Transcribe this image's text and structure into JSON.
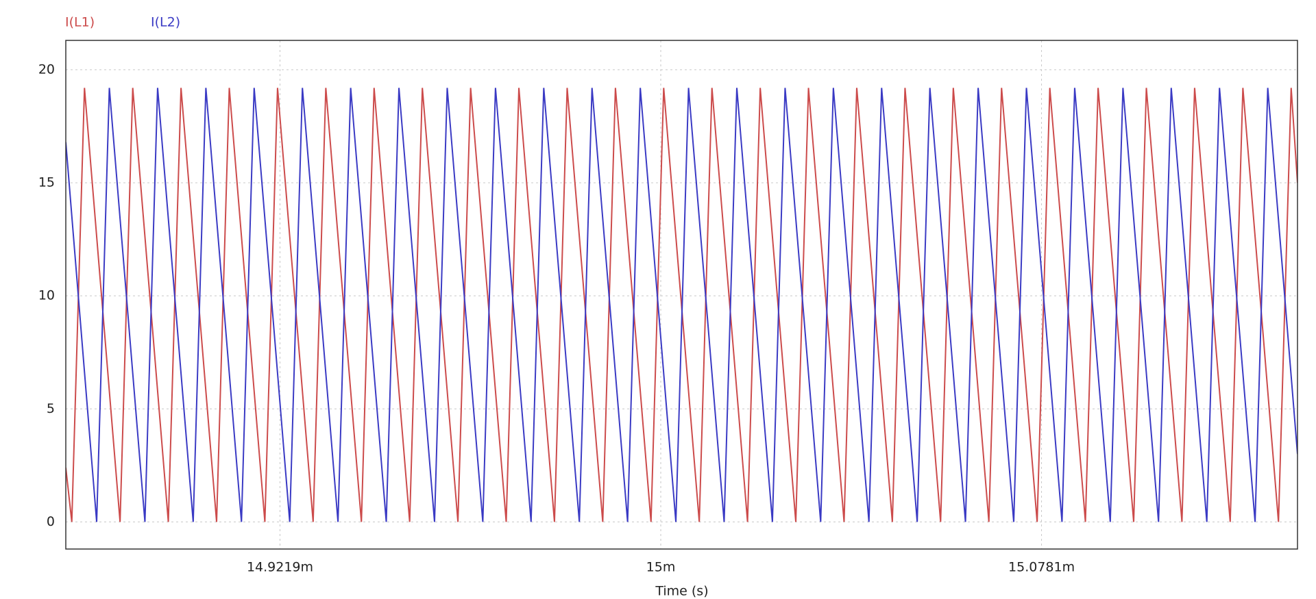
{
  "chart_data": {
    "type": "line",
    "xlabel": "Time (s)",
    "xlim": [
      0.01487797,
      0.0151306
    ],
    "xticks": [
      {
        "value": 0.0149219,
        "label": "14.9219m"
      },
      {
        "value": 0.015,
        "label": "15m"
      },
      {
        "value": 0.0150781,
        "label": "15.0781m"
      }
    ],
    "ylim": [
      -1.2,
      21.3
    ],
    "yticks": [
      0,
      5,
      10,
      15,
      20
    ],
    "grid": true,
    "series": [
      {
        "name": "I(L1)",
        "color": "#cc4b4b",
        "x": [
          0.01487797,
          0.0148792,
          0.0148818,
          0.0148891,
          0.0148917,
          0.014899,
          0.0149016,
          0.0149089,
          0.0149115,
          0.0149188,
          0.0149214,
          0.0149287,
          0.0149313,
          0.0149386,
          0.0149412,
          0.0149485,
          0.0149511,
          0.0149584,
          0.014961,
          0.0149683,
          0.0149709,
          0.0149782,
          0.0149808,
          0.0149881,
          0.0149907,
          0.014998,
          0.0150006,
          0.0150079,
          0.0150105,
          0.0150178,
          0.0150204,
          0.0150277,
          0.0150303,
          0.0150376,
          0.0150402,
          0.0150475,
          0.0150501,
          0.0150574,
          0.01506,
          0.0150673,
          0.0150699,
          0.0150772,
          0.0150798,
          0.0150871,
          0.0150897,
          0.015097,
          0.0150996,
          0.0151069,
          0.0151095,
          0.0151168,
          0.0151194,
          0.0151267,
          0.0151293,
          0.0151306
        ],
        "values": [
          2.4,
          0,
          19.2,
          0,
          19.2,
          0,
          19.2,
          0,
          19.2,
          0,
          19.2,
          0,
          19.2,
          0,
          19.2,
          0,
          19.2,
          0,
          19.2,
          0,
          19.2,
          0,
          19.2,
          0,
          19.2,
          0,
          19.2,
          0,
          19.2,
          0,
          19.2,
          0,
          19.2,
          0,
          19.2,
          0,
          19.2,
          0,
          19.2,
          0,
          19.2,
          0,
          19.2,
          0,
          19.2,
          0,
          19.2,
          0,
          19.2,
          0,
          19.2,
          0,
          19.2,
          15
        ]
      },
      {
        "name": "I(L2)",
        "color": "#3a3ac4",
        "x": [
          0.01487797,
          0.0148843,
          0.0148869,
          0.0148942,
          0.0148968,
          0.0149041,
          0.0149067,
          0.014914,
          0.0149166,
          0.0149239,
          0.0149265,
          0.0149338,
          0.0149364,
          0.0149437,
          0.0149463,
          0.0149536,
          0.0149562,
          0.0149635,
          0.0149661,
          0.0149734,
          0.014976,
          0.0149833,
          0.0149859,
          0.0149932,
          0.0149958,
          0.0150031,
          0.0150057,
          0.015013,
          0.0150156,
          0.0150229,
          0.0150255,
          0.0150328,
          0.0150354,
          0.0150427,
          0.0150453,
          0.0150526,
          0.0150552,
          0.0150625,
          0.0150651,
          0.0150724,
          0.015075,
          0.0150823,
          0.0150849,
          0.0150922,
          0.0150948,
          0.0151021,
          0.0151047,
          0.015112,
          0.0151146,
          0.0151219,
          0.0151245,
          0.0151306
        ],
        "values": [
          16.8,
          0,
          19.2,
          0,
          19.2,
          0,
          19.2,
          0,
          19.2,
          0,
          19.2,
          0,
          19.2,
          0,
          19.2,
          0,
          19.2,
          0,
          19.2,
          0,
          19.2,
          0,
          19.2,
          0,
          19.2,
          0,
          19.2,
          0,
          19.2,
          0,
          19.2,
          0,
          19.2,
          0,
          19.2,
          0,
          19.2,
          0,
          19.2,
          0,
          19.2,
          0,
          19.2,
          0,
          19.2,
          0,
          19.2,
          0,
          19.2,
          0,
          19.2,
          3
        ]
      }
    ]
  }
}
